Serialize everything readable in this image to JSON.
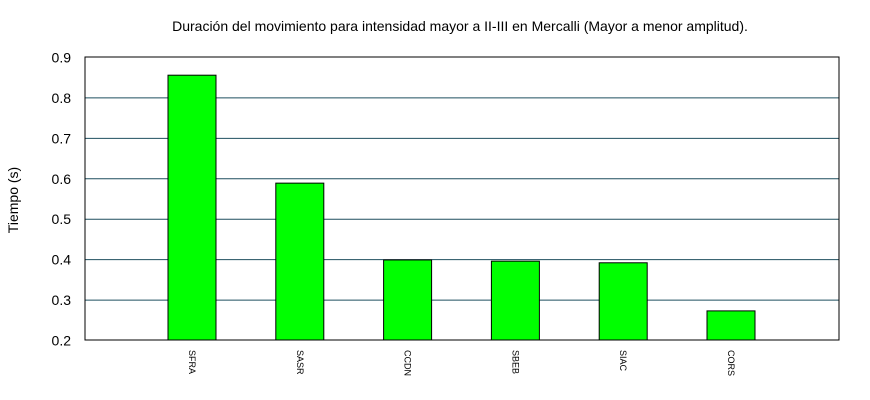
{
  "chart_data": {
    "type": "bar",
    "title": "Duración del movimiento para intensidad mayor a II-III en Mercalli (Mayor a menor amplitud).",
    "xlabel": "",
    "ylabel": "Tiempo (s)",
    "categories": [
      "SFRA",
      "SASR",
      "CCDN",
      "SBEB",
      "SIAC",
      "CORS"
    ],
    "values": [
      0.855,
      0.588,
      0.398,
      0.395,
      0.391,
      0.272
    ],
    "ylim": [
      0.2,
      0.9
    ],
    "yticks": [
      "0.2",
      "0.3",
      "0.4",
      "0.5",
      "0.6",
      "0.7",
      "0.8",
      "0.9"
    ],
    "grid": true,
    "legend": "none",
    "colors": {
      "bar": "#00ff00",
      "bar_edge": "#000000",
      "grid": "#1f4f5f"
    }
  }
}
